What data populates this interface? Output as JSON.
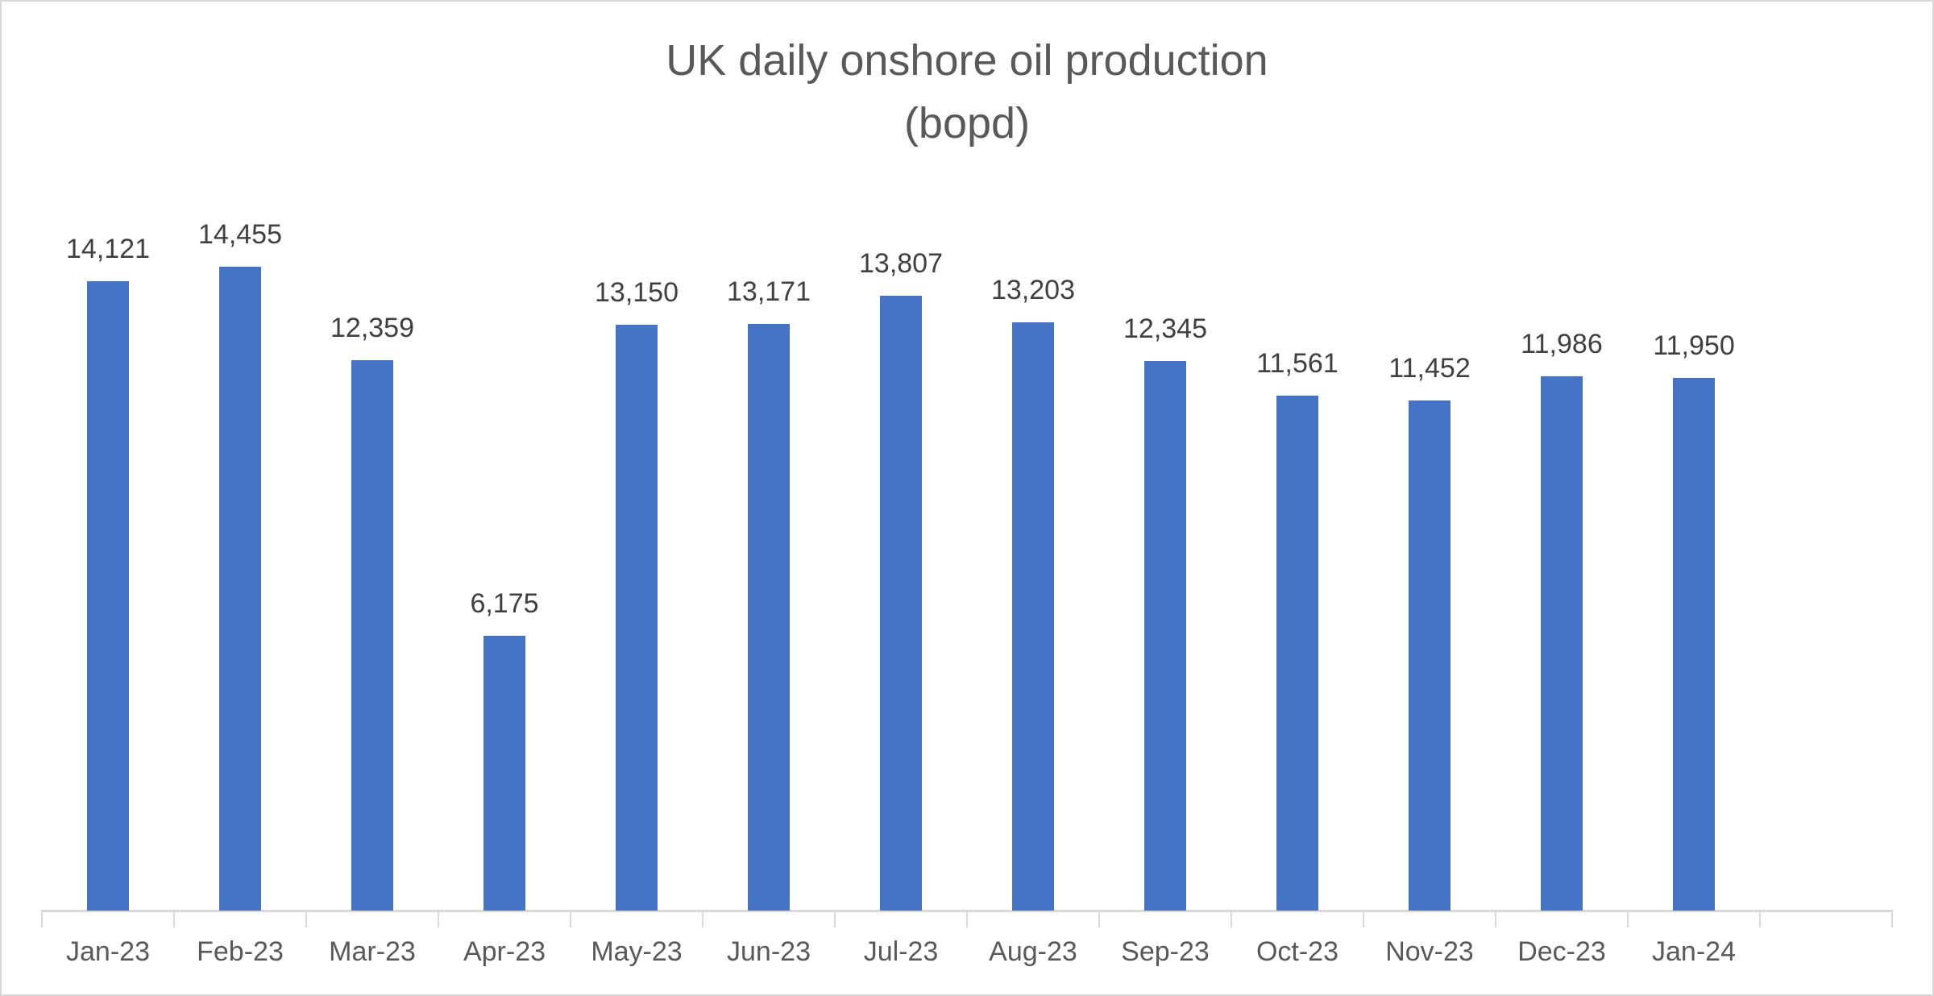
{
  "chart_data": {
    "type": "bar",
    "title": "UK daily onshore oil production (bopd)",
    "title_lines": [
      "UK daily onshore oil production",
      "(bopd)"
    ],
    "xlabel": "",
    "ylabel": "",
    "categories": [
      "Jan-23",
      "Feb-23",
      "Mar-23",
      "Apr-23",
      "May-23",
      "Jun-23",
      "Jul-23",
      "Aug-23",
      "Sep-23",
      "Oct-23",
      "Nov-23",
      "Dec-23",
      "Jan-24"
    ],
    "values": [
      14121,
      14455,
      12359,
      6175,
      13150,
      13171,
      13807,
      13203,
      12345,
      11561,
      11452,
      11986,
      11950
    ],
    "data_labels": [
      "14,121",
      "14,455",
      "12,359",
      "6,175",
      "13,150",
      "13,171",
      "13,807",
      "13,203",
      "12,345",
      "11,561",
      "11,452",
      "11,986",
      "11,950"
    ],
    "series": [
      {
        "name": "UK daily onshore oil production (bopd)",
        "color": "#4472c4",
        "values": [
          14121,
          14455,
          12359,
          6175,
          13150,
          13171,
          13807,
          13203,
          12345,
          11561,
          11452,
          11986,
          11950
        ]
      }
    ],
    "ylim": [
      0,
      20000
    ],
    "grid": false,
    "legend": "none",
    "y_axis_visible": false,
    "category_slots": 14
  },
  "colors": {
    "bar": "#4472c4",
    "axis": "#d9d9d9",
    "title": "#595959",
    "label": "#404040"
  }
}
